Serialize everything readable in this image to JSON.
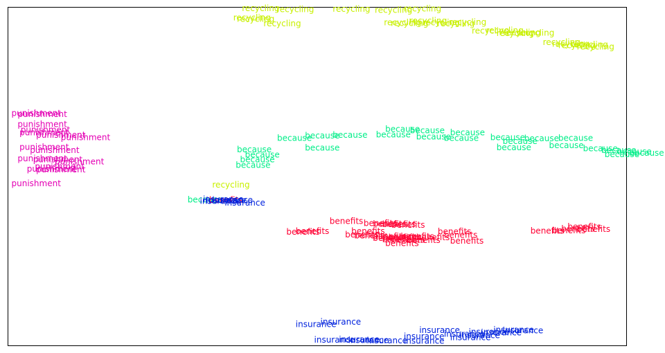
{
  "chart_data": {
    "type": "scatter",
    "title": "",
    "xlabel": "",
    "ylabel": "",
    "xlim": [
      0,
      100
    ],
    "ylim": [
      0,
      100
    ],
    "grid": false,
    "ticks": false,
    "point_style": "word label",
    "series": [
      {
        "word": "recycling",
        "color": "#c8f000",
        "points": [
          [
            37.8,
            99.8
          ],
          [
            43.4,
            99.5
          ],
          [
            52.5,
            99.6
          ],
          [
            59.3,
            99.3
          ],
          [
            64.0,
            99.7
          ],
          [
            36.4,
            97.0
          ],
          [
            37.0,
            96.6
          ],
          [
            41.3,
            95.3
          ],
          [
            60.8,
            95.6
          ],
          [
            61.9,
            95.4
          ],
          [
            64.9,
            96.1
          ],
          [
            67.0,
            95.6
          ],
          [
            69.4,
            95.3
          ],
          [
            71.3,
            95.7
          ],
          [
            75.0,
            93.1
          ],
          [
            77.3,
            93.2
          ],
          [
            79.0,
            92.4
          ],
          [
            80.1,
            92.6
          ],
          [
            82.3,
            92.5
          ],
          [
            86.5,
            89.8
          ],
          [
            88.0,
            89.2
          ],
          [
            89.0,
            88.8
          ],
          [
            91.0,
            89.0
          ],
          [
            92.0,
            88.4
          ],
          [
            33.0,
            47.5
          ]
        ]
      },
      {
        "word": "punishment",
        "color": "#e400b4",
        "points": [
          [
            0.5,
            68.8
          ],
          [
            1.5,
            68.4
          ],
          [
            1.5,
            65.5
          ],
          [
            2.0,
            63.8
          ],
          [
            1.8,
            63.0
          ],
          [
            4.5,
            62.3
          ],
          [
            8.5,
            61.6
          ],
          [
            1.8,
            58.7
          ],
          [
            3.5,
            57.8
          ],
          [
            1.5,
            55.3
          ],
          [
            4.0,
            55.0
          ],
          [
            7.5,
            54.4
          ],
          [
            4.3,
            53.0
          ],
          [
            3.0,
            52.3
          ],
          [
            4.5,
            52.1
          ],
          [
            0.5,
            48.0
          ]
        ]
      },
      {
        "word": "because",
        "color": "#00ee88",
        "points": [
          [
            61.0,
            64.0
          ],
          [
            65.0,
            63.6
          ],
          [
            59.5,
            62.4
          ],
          [
            71.5,
            63.0
          ],
          [
            52.5,
            62.3
          ],
          [
            48.0,
            62.1
          ],
          [
            43.5,
            61.4
          ],
          [
            66.0,
            61.8
          ],
          [
            70.5,
            61.4
          ],
          [
            78.0,
            61.6
          ],
          [
            83.5,
            61.3
          ],
          [
            89.0,
            61.4
          ],
          [
            80.0,
            60.4
          ],
          [
            79.0,
            58.6
          ],
          [
            87.5,
            59.2
          ],
          [
            37.0,
            58.0
          ],
          [
            38.3,
            56.5
          ],
          [
            37.5,
            55.0
          ],
          [
            36.8,
            53.4
          ],
          [
            48.0,
            58.5
          ],
          [
            93.0,
            58.3
          ],
          [
            96.0,
            57.8
          ],
          [
            96.5,
            56.6
          ],
          [
            98.5,
            57.4
          ],
          [
            100.5,
            57.0
          ],
          [
            29.0,
            43.1
          ]
        ]
      },
      {
        "word": "benefits",
        "color": "#ff0033",
        "points": [
          [
            52.0,
            36.8
          ],
          [
            57.5,
            36.2
          ],
          [
            59.0,
            36.0
          ],
          [
            60.5,
            35.9
          ],
          [
            62.0,
            35.7
          ],
          [
            46.5,
            33.8
          ],
          [
            45.0,
            33.6
          ],
          [
            55.5,
            33.8
          ],
          [
            69.5,
            33.7
          ],
          [
            54.5,
            32.8
          ],
          [
            56.0,
            32.5
          ],
          [
            59.0,
            32.3
          ],
          [
            60.5,
            32.0
          ],
          [
            61.5,
            32.0
          ],
          [
            63.5,
            32.3
          ],
          [
            66.0,
            32.0
          ],
          [
            70.5,
            32.7
          ],
          [
            59.0,
            31.8
          ],
          [
            60.5,
            31.4
          ],
          [
            62.0,
            31.3
          ],
          [
            64.5,
            31.1
          ],
          [
            71.5,
            30.9
          ],
          [
            61.0,
            30.2
          ],
          [
            84.5,
            33.9
          ],
          [
            88.0,
            34.0
          ],
          [
            89.5,
            34.5
          ],
          [
            92.0,
            34.4
          ],
          [
            90.5,
            35.1
          ],
          [
            32.5,
            43.0
          ]
        ]
      },
      {
        "word": "insurance",
        "color": "#0022dd",
        "points": [
          [
            50.5,
            7.0
          ],
          [
            46.5,
            6.3
          ],
          [
            66.5,
            4.5
          ],
          [
            78.5,
            4.6
          ],
          [
            80.0,
            4.4
          ],
          [
            74.5,
            4.0
          ],
          [
            76.5,
            3.8
          ],
          [
            70.5,
            3.4
          ],
          [
            73.0,
            3.0
          ],
          [
            64.0,
            2.7
          ],
          [
            71.5,
            2.4
          ],
          [
            49.5,
            1.6
          ],
          [
            53.5,
            1.7
          ],
          [
            55.0,
            1.5
          ],
          [
            58.0,
            1.4
          ],
          [
            64.0,
            1.3
          ],
          [
            31.5,
            43.2
          ],
          [
            32.0,
            42.9
          ],
          [
            31.0,
            42.7
          ],
          [
            33.0,
            43.0
          ],
          [
            35.0,
            42.2
          ]
        ]
      }
    ]
  }
}
